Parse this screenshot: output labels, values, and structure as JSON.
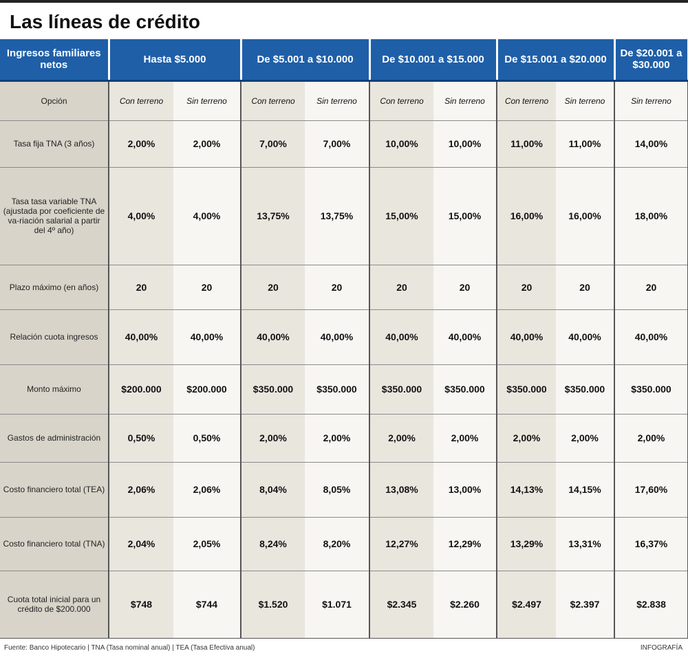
{
  "title": "Las líneas de crédito",
  "table": {
    "header": [
      "Ingresos familiares netos",
      "Hasta $5.000",
      "De $5.001 a $10.000",
      "De $10.001 a $15.000",
      "De $15.001 a $20.000",
      "De $20.001 a $30.000"
    ],
    "rows": [
      {
        "label": "Opción",
        "cells": [
          "Con terreno",
          "Sin terreno",
          "Con terreno",
          "Sin terreno",
          "Con terreno",
          "Sin terreno",
          "Con terreno",
          "Sin terreno",
          "Sin terreno"
        ]
      },
      {
        "label": "Tasa fija TNA (3 años)",
        "cells": [
          "2,00%",
          "2,00%",
          "7,00%",
          "7,00%",
          "10,00%",
          "10,00%",
          "11,00%",
          "11,00%",
          "14,00%"
        ]
      },
      {
        "label": "Tasa tasa variable TNA (ajustada por coeficiente de va-riación salarial a partir del 4º año)",
        "cells": [
          "4,00%",
          "4,00%",
          "13,75%",
          "13,75%",
          "15,00%",
          "15,00%",
          "16,00%",
          "16,00%",
          "18,00%"
        ]
      },
      {
        "label": "Plazo máximo (en años)",
        "cells": [
          "20",
          "20",
          "20",
          "20",
          "20",
          "20",
          "20",
          "20",
          "20"
        ]
      },
      {
        "label": "Relación cuota ingresos",
        "cells": [
          "40,00%",
          "40,00%",
          "40,00%",
          "40,00%",
          "40,00%",
          "40,00%",
          "40,00%",
          "40,00%",
          "40,00%"
        ]
      },
      {
        "label": "Monto máximo",
        "cells": [
          "$200.000",
          "$200.000",
          "$350.000",
          "$350.000",
          "$350.000",
          "$350.000",
          "$350.000",
          "$350.000",
          "$350.000"
        ]
      },
      {
        "label": "Gastos de administración",
        "cells": [
          "0,50%",
          "0,50%",
          "2,00%",
          "2,00%",
          "2,00%",
          "2,00%",
          "2,00%",
          "2,00%",
          "2,00%"
        ]
      },
      {
        "label": "Costo financiero total (TEA)",
        "cells": [
          "2,06%",
          "2,06%",
          "8,04%",
          "8,05%",
          "13,08%",
          "13,00%",
          "14,13%",
          "14,15%",
          "17,60%"
        ]
      },
      {
        "label": "Costo financiero total (TNA)",
        "cells": [
          "2,04%",
          "2,05%",
          "8,24%",
          "8,20%",
          "12,27%",
          "12,29%",
          "13,29%",
          "13,31%",
          "16,37%"
        ]
      },
      {
        "label": "Cuota total inicial para un crédito de $200.000",
        "cells": [
          "$748",
          "$744",
          "$1.520",
          "$1.071",
          "$2.345",
          "$2.260",
          "$2.497",
          "$2.397",
          "$2.838"
        ]
      }
    ]
  },
  "footer": {
    "source": "Fuente: Banco Hipotecario | TNA (Tasa nominal anual) | TEA (Tasa Efectiva anual)",
    "credit": "INFOGRAFÍA"
  }
}
